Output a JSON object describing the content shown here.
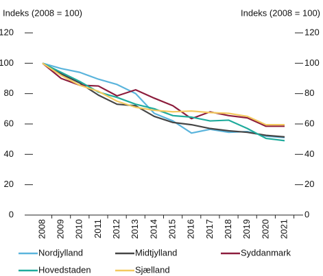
{
  "chart_data": {
    "type": "line",
    "y_label": "Indeks (2008 = 100)",
    "y2_label": "Indeks (2008 = 100)",
    "categories": [
      "2008",
      "2009",
      "2010",
      "2011",
      "2012",
      "2013",
      "2014",
      "2015",
      "2016",
      "2017",
      "2018",
      "2019",
      "2020",
      "2021"
    ],
    "series": [
      {
        "name": "Nordjylland",
        "color": "#5ab4dc",
        "values": [
          100,
          96.5,
          94,
          89.5,
          86,
          80,
          67,
          62,
          54,
          56.5,
          54.5,
          55,
          52,
          51
        ]
      },
      {
        "name": "Midtjylland",
        "color": "#454545",
        "values": [
          100,
          93,
          87,
          79,
          73,
          72,
          65,
          61,
          59.5,
          57,
          55.5,
          54.5,
          52.5,
          51.5
        ]
      },
      {
        "name": "Syddanmark",
        "color": "#8c1c3c",
        "values": [
          100,
          90,
          85.5,
          85,
          78.5,
          82.5,
          77,
          72,
          63.5,
          68,
          65.5,
          64,
          58.5,
          58.5
        ]
      },
      {
        "name": "Hovedstaden",
        "color": "#1fab9c",
        "values": [
          100,
          94,
          88,
          81,
          77.5,
          73,
          70,
          65.5,
          64.5,
          62,
          62.5,
          57,
          50.5,
          49
        ]
      },
      {
        "name": "Sjælland",
        "color": "#f3c95f",
        "values": [
          100,
          92,
          85.5,
          81.5,
          75,
          71,
          69,
          68,
          68.5,
          67.5,
          67,
          65,
          59.5,
          59.5
        ]
      }
    ],
    "ylim": [
      0,
      120
    ],
    "yticks": [
      0,
      20,
      40,
      60,
      80,
      100,
      120
    ],
    "y2lim": [
      0,
      120
    ],
    "y2ticks": [
      0,
      20,
      40,
      60,
      80,
      100,
      120
    ]
  }
}
